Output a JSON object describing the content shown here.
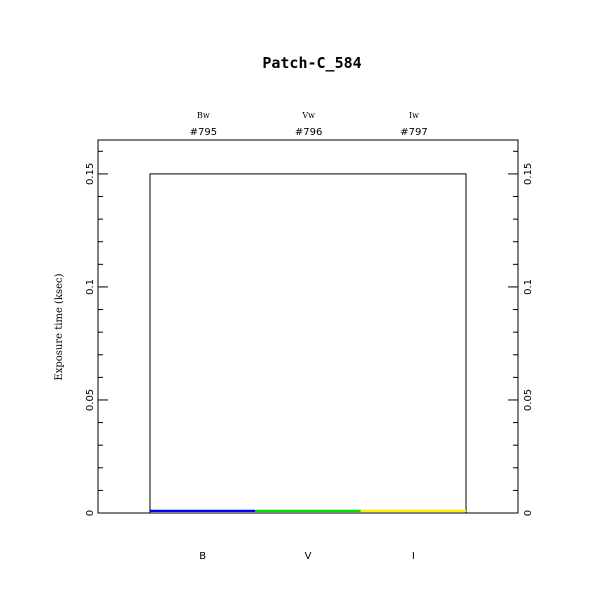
{
  "chart_data": {
    "type": "bar",
    "title": "Patch-C_584",
    "ylabel": "Exposure time (ksec)",
    "xlabel": "",
    "ylim": [
      0,
      0.165
    ],
    "yticks": [
      0,
      0.05,
      0.1,
      0.15
    ],
    "ytick_labels": [
      "0",
      "0.05",
      "0.1",
      "0.15"
    ],
    "categories": [
      "B",
      "V",
      "I"
    ],
    "filters": [
      "Bw",
      "Vw",
      "Iw"
    ],
    "ids": [
      "#795",
      "#796",
      "#797"
    ],
    "values": [
      0.001,
      0.001,
      0.001
    ],
    "colors": [
      "#0000ff",
      "#00dd00",
      "#ffee00"
    ],
    "envelope": 0.15,
    "grid": false
  }
}
